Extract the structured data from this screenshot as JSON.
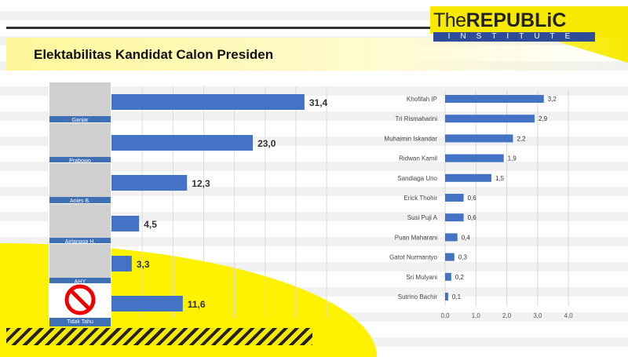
{
  "brand": {
    "logo_the": "The",
    "logo_republic": "REPUBLiC",
    "logo_institute": "INSTITUTE",
    "watermark": "TheREPUBLIC",
    "accent": "#f7ea00",
    "bar_color": "#4472c4"
  },
  "title": "Elektabilitas  Kandidat Calon Presiden",
  "chart_data": [
    {
      "type": "bar",
      "orientation": "horizontal",
      "categories": [
        "Ganjar",
        "Prabowo",
        "Anies B.",
        "Airlangga H.",
        "AHY",
        "Tidak Tahu"
      ],
      "values": [
        31.4,
        23.0,
        12.3,
        4.5,
        3.3,
        11.6
      ],
      "value_labels": [
        "31,4",
        "23,0",
        "12,3",
        "4,5",
        "3,3",
        "11,6"
      ],
      "xlim": [
        0,
        35
      ],
      "grid": true
    },
    {
      "type": "bar",
      "orientation": "horizontal",
      "categories": [
        "Khofifah IP",
        "Tri Rismaharini",
        "Muhaimin Iskandar",
        "Ridwan Kamil",
        "Sandiaga Uno",
        "Erick Thohir",
        "Susi Puji A",
        "Puan Maharani",
        "Gatot Nurmantyo",
        "Sri Mulyani",
        "Sutrino Bachir"
      ],
      "values": [
        3.2,
        2.9,
        2.2,
        1.9,
        1.5,
        0.6,
        0.6,
        0.4,
        0.3,
        0.2,
        0.1
      ],
      "value_labels": [
        "3,2",
        "2,9",
        "2,2",
        "1,9",
        "1,5",
        "0,6",
        "0,6",
        "0,4",
        "0,3",
        "0,2",
        "0,1"
      ],
      "xlim": [
        0,
        4
      ],
      "ticks": [
        "0,0",
        "1,0",
        "2,0",
        "3,0",
        "4,0"
      ],
      "grid": true
    }
  ]
}
